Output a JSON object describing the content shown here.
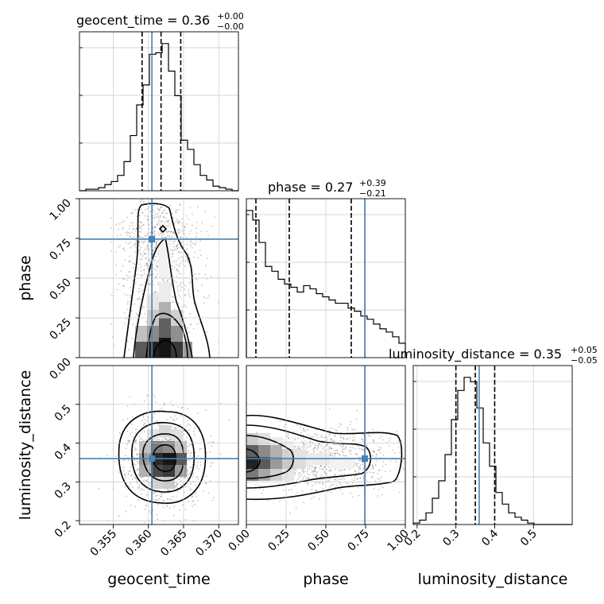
{
  "chart_data": {
    "type": "corner",
    "parameters": [
      {
        "name": "geocent_time",
        "axis_label": "geocent_time",
        "title_prefix": "geocent_time = 0.36",
        "title_sup": "+0.00",
        "title_sub": "−0.00",
        "range": [
          0.3502,
          0.3728
        ],
        "ticks": [
          0.355,
          0.36,
          0.365,
          0.37
        ],
        "tick_labels": [
          "0.355",
          "0.360",
          "0.365",
          "0.370"
        ],
        "truth": 0.3605,
        "quantiles": [
          0.3591,
          0.3618,
          0.3646
        ]
      },
      {
        "name": "phase",
        "axis_label": "phase",
        "title_prefix": "phase = 0.27",
        "title_sup": "+0.39",
        "title_sub": "−0.21",
        "range": [
          0.0,
          1.0
        ],
        "ticks": [
          0.0,
          0.25,
          0.5,
          0.75,
          1.0
        ],
        "tick_labels": [
          "0.00",
          "0.25",
          "0.50",
          "0.75",
          "1.00"
        ],
        "truth": 0.745,
        "quantiles": [
          0.06,
          0.27,
          0.66
        ]
      },
      {
        "name": "luminosity_distance",
        "axis_label": "luminosity_distance",
        "title_prefix": "luminosity_distance = 0.35",
        "title_sup": "+0.05",
        "title_sub": "−0.05",
        "range": [
          0.19,
          0.6
        ],
        "ticks": [
          0.2,
          0.3,
          0.4,
          0.5
        ],
        "tick_labels": [
          "0.2",
          "0.3",
          "0.4",
          "0.5"
        ],
        "truth": 0.36,
        "quantiles": [
          0.3,
          0.35,
          0.4
        ]
      }
    ],
    "histograms": [
      {
        "param": "geocent_time",
        "counts": [
          0,
          1,
          1,
          2,
          4,
          6,
          10,
          19,
          36,
          56,
          69,
          89,
          90,
          96,
          78,
          62,
          33,
          27,
          17,
          10,
          7,
          3,
          2,
          1,
          0
        ]
      },
      {
        "param": "phase",
        "counts": [
          92,
          86,
          72,
          57,
          54,
          49,
          46,
          44,
          41,
          45,
          43,
          40,
          38,
          36,
          34,
          34,
          31,
          29,
          26,
          24,
          21,
          18,
          16,
          13,
          9
        ]
      },
      {
        "param": "luminosity_distance",
        "counts": [
          1,
          3,
          8,
          18,
          30,
          48,
          72,
          92,
          101,
          98,
          80,
          56,
          40,
          22,
          14,
          8,
          5,
          3,
          1,
          0,
          0,
          0,
          0,
          0,
          0
        ]
      }
    ],
    "truth_color": "#4682b4",
    "contour_color": "#000000",
    "grid": true
  }
}
